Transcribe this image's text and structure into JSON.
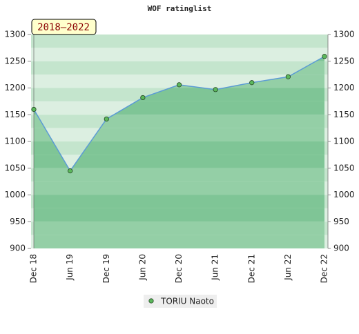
{
  "chart_data": {
    "type": "line",
    "title": "WOF ratinglist",
    "annotation": "2018–2022",
    "categories": [
      "Dec 18",
      "Jun 19",
      "Dec 19",
      "Jun 20",
      "Dec 20",
      "Jun 21",
      "Dec 21",
      "Jun 22",
      "Dec 22"
    ],
    "series": [
      {
        "name": "TORIU Naoto",
        "color": "#5b9bd5",
        "marker_color": "#5cb85c",
        "values": [
          1160,
          1045,
          1142,
          1182,
          1206,
          1197,
          1210,
          1221,
          1259
        ]
      }
    ],
    "ylim": [
      900,
      1300
    ],
    "yticks": [
      900,
      950,
      1000,
      1050,
      1100,
      1150,
      1200,
      1250,
      1300
    ],
    "y2lim": [
      900,
      1300
    ],
    "y2ticks": [
      900,
      950,
      1000,
      1050,
      1100,
      1150,
      1200,
      1250,
      1300
    ]
  }
}
